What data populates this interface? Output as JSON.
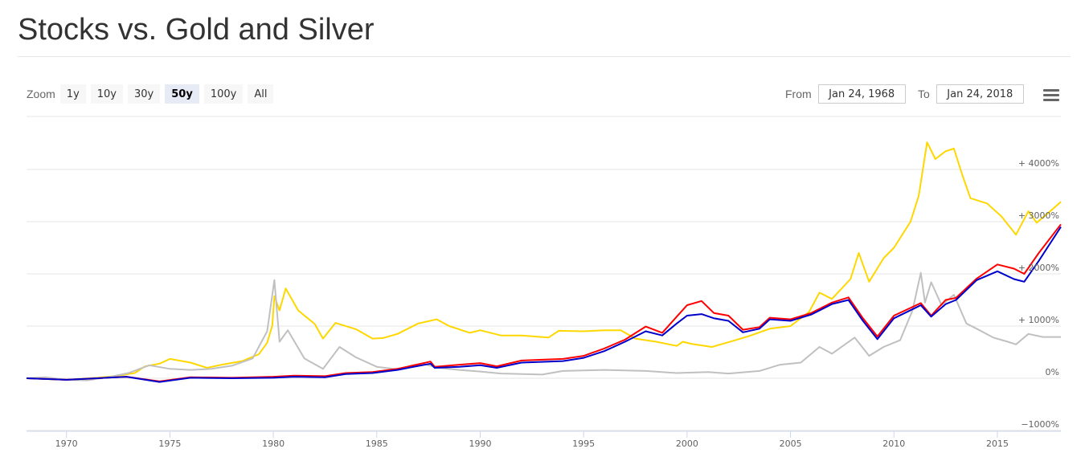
{
  "page": {
    "title": "Stocks vs. Gold and Silver"
  },
  "range_selector": {
    "zoom_label": "Zoom",
    "buttons": [
      "1y",
      "10y",
      "30y",
      "50y",
      "100y",
      "All"
    ],
    "active": "50y",
    "from_label": "From",
    "from_value": "Jan 24, 1968",
    "to_label": "To",
    "to_value": "Jan 24, 2018"
  },
  "menu_icon": "hamburger-menu-icon",
  "chart_data": {
    "type": "line",
    "title": "Stocks vs. Gold and Silver",
    "xlim": [
      1968.07,
      2018.07
    ],
    "ylim": [
      -1000,
      5000
    ],
    "x_ticks": [
      1970,
      1975,
      1980,
      1985,
      1990,
      1995,
      2000,
      2005,
      2010,
      2015
    ],
    "x_tick_labels": [
      "1970",
      "1975",
      "1980",
      "1985",
      "1990",
      "1995",
      "2000",
      "2005",
      "2010",
      "2015"
    ],
    "y_ticks": [
      -1000,
      0,
      1000,
      2000,
      3000,
      4000
    ],
    "y_tick_labels": [
      "−1000%",
      "0%",
      "+ 1000%",
      "+ 2000%",
      "+ 3000%",
      "+ 4000%"
    ],
    "grid": true,
    "legend": false,
    "series": [
      {
        "color": "#ffd700",
        "points": [
          [
            1968.07,
            0
          ],
          [
            1970,
            -30
          ],
          [
            1971.5,
            10
          ],
          [
            1972.5,
            50
          ],
          [
            1973.3,
            100
          ],
          [
            1973.8,
            230
          ],
          [
            1974.5,
            280
          ],
          [
            1975,
            370
          ],
          [
            1976,
            300
          ],
          [
            1976.8,
            200
          ],
          [
            1977.5,
            260
          ],
          [
            1978.5,
            330
          ],
          [
            1979.3,
            460
          ],
          [
            1979.7,
            680
          ],
          [
            1979.95,
            1010
          ],
          [
            1980.05,
            1570
          ],
          [
            1980.3,
            1300
          ],
          [
            1980.6,
            1720
          ],
          [
            1981.2,
            1300
          ],
          [
            1982,
            1040
          ],
          [
            1982.4,
            760
          ],
          [
            1983,
            1060
          ],
          [
            1984,
            940
          ],
          [
            1984.8,
            760
          ],
          [
            1985.3,
            770
          ],
          [
            1986,
            850
          ],
          [
            1987,
            1050
          ],
          [
            1987.9,
            1130
          ],
          [
            1988.5,
            1000
          ],
          [
            1989.5,
            870
          ],
          [
            1990,
            920
          ],
          [
            1991,
            820
          ],
          [
            1992,
            820
          ],
          [
            1993.3,
            780
          ],
          [
            1993.8,
            910
          ],
          [
            1995,
            900
          ],
          [
            1996,
            920
          ],
          [
            1996.8,
            920
          ],
          [
            1997.5,
            760
          ],
          [
            1998.5,
            700
          ],
          [
            1999.5,
            620
          ],
          [
            1999.8,
            700
          ],
          [
            2000.2,
            660
          ],
          [
            2001.2,
            600
          ],
          [
            2002,
            690
          ],
          [
            2003,
            810
          ],
          [
            2004,
            950
          ],
          [
            2005,
            1000
          ],
          [
            2005.9,
            1270
          ],
          [
            2006.4,
            1640
          ],
          [
            2007,
            1520
          ],
          [
            2007.9,
            1900
          ],
          [
            2008.3,
            2400
          ],
          [
            2008.8,
            1850
          ],
          [
            2009.5,
            2300
          ],
          [
            2010,
            2500
          ],
          [
            2010.8,
            3000
          ],
          [
            2011.2,
            3500
          ],
          [
            2011.6,
            4520
          ],
          [
            2012,
            4200
          ],
          [
            2012.5,
            4350
          ],
          [
            2012.9,
            4400
          ],
          [
            2013.3,
            3900
          ],
          [
            2013.7,
            3450
          ],
          [
            2014.5,
            3350
          ],
          [
            2015.2,
            3100
          ],
          [
            2015.9,
            2750
          ],
          [
            2016.5,
            3200
          ],
          [
            2016.9,
            2980
          ],
          [
            2017.5,
            3180
          ],
          [
            2018.07,
            3380
          ]
        ]
      },
      {
        "color": "#c0c0c0",
        "points": [
          [
            1968.07,
            0
          ],
          [
            1969,
            20
          ],
          [
            1970,
            -30
          ],
          [
            1971,
            -40
          ],
          [
            1972,
            20
          ],
          [
            1973,
            100
          ],
          [
            1974,
            250
          ],
          [
            1975,
            180
          ],
          [
            1976,
            160
          ],
          [
            1977,
            180
          ],
          [
            1978,
            240
          ],
          [
            1979,
            380
          ],
          [
            1979.7,
            900
          ],
          [
            1980.05,
            1880
          ],
          [
            1980.3,
            700
          ],
          [
            1980.7,
            920
          ],
          [
            1981.5,
            380
          ],
          [
            1982.4,
            180
          ],
          [
            1983.2,
            600
          ],
          [
            1984,
            400
          ],
          [
            1985,
            220
          ],
          [
            1986,
            170
          ],
          [
            1987.3,
            270
          ],
          [
            1988,
            200
          ],
          [
            1989,
            160
          ],
          [
            1990,
            130
          ],
          [
            1991,
            90
          ],
          [
            1993,
            70
          ],
          [
            1994,
            140
          ],
          [
            1996,
            160
          ],
          [
            1998,
            140
          ],
          [
            1999.5,
            100
          ],
          [
            2001,
            120
          ],
          [
            2002,
            90
          ],
          [
            2003.5,
            140
          ],
          [
            2004.5,
            260
          ],
          [
            2005.5,
            300
          ],
          [
            2006.4,
            600
          ],
          [
            2007,
            470
          ],
          [
            2008.1,
            780
          ],
          [
            2008.8,
            430
          ],
          [
            2009.5,
            600
          ],
          [
            2010.3,
            730
          ],
          [
            2010.9,
            1300
          ],
          [
            2011.3,
            2020
          ],
          [
            2011.5,
            1450
          ],
          [
            2011.8,
            1840
          ],
          [
            2012.3,
            1400
          ],
          [
            2012.9,
            1600
          ],
          [
            2013.5,
            1050
          ],
          [
            2014,
            950
          ],
          [
            2014.8,
            780
          ],
          [
            2015.5,
            700
          ],
          [
            2015.9,
            650
          ],
          [
            2016.5,
            850
          ],
          [
            2017.2,
            790
          ],
          [
            2018.07,
            790
          ]
        ]
      },
      {
        "color": "#ff0000",
        "points": [
          [
            1968.07,
            0
          ],
          [
            1970,
            -30
          ],
          [
            1972.9,
            30
          ],
          [
            1974.5,
            -60
          ],
          [
            1976,
            20
          ],
          [
            1978,
            10
          ],
          [
            1980,
            30
          ],
          [
            1981,
            50
          ],
          [
            1982.5,
            40
          ],
          [
            1983.5,
            100
          ],
          [
            1984.8,
            120
          ],
          [
            1986,
            180
          ],
          [
            1987.6,
            320
          ],
          [
            1987.8,
            220
          ],
          [
            1989,
            260
          ],
          [
            1990,
            290
          ],
          [
            1990.8,
            230
          ],
          [
            1992,
            340
          ],
          [
            1994,
            370
          ],
          [
            1995,
            430
          ],
          [
            1996,
            570
          ],
          [
            1997,
            740
          ],
          [
            1998,
            990
          ],
          [
            1998.8,
            870
          ],
          [
            1999.5,
            1180
          ],
          [
            2000,
            1400
          ],
          [
            2000.7,
            1480
          ],
          [
            2001.3,
            1250
          ],
          [
            2002,
            1200
          ],
          [
            2002.7,
            930
          ],
          [
            2003.5,
            980
          ],
          [
            2004,
            1160
          ],
          [
            2005,
            1130
          ],
          [
            2006,
            1250
          ],
          [
            2007,
            1450
          ],
          [
            2007.8,
            1550
          ],
          [
            2008.5,
            1150
          ],
          [
            2009.2,
            800
          ],
          [
            2010,
            1200
          ],
          [
            2011.3,
            1440
          ],
          [
            2011.8,
            1200
          ],
          [
            2012.5,
            1500
          ],
          [
            2013,
            1540
          ],
          [
            2014,
            1910
          ],
          [
            2015,
            2180
          ],
          [
            2015.8,
            2100
          ],
          [
            2016.3,
            2000
          ],
          [
            2017,
            2400
          ],
          [
            2018.07,
            2950
          ]
        ]
      },
      {
        "color": "#0000cc",
        "points": [
          [
            1968.07,
            0
          ],
          [
            1970,
            -30
          ],
          [
            1972.9,
            30
          ],
          [
            1974.5,
            -70
          ],
          [
            1976,
            10
          ],
          [
            1978,
            0
          ],
          [
            1980,
            10
          ],
          [
            1981,
            30
          ],
          [
            1982.5,
            20
          ],
          [
            1983.5,
            80
          ],
          [
            1984.8,
            100
          ],
          [
            1986,
            160
          ],
          [
            1987.6,
            280
          ],
          [
            1987.8,
            200
          ],
          [
            1989,
            220
          ],
          [
            1990,
            250
          ],
          [
            1990.8,
            200
          ],
          [
            1992,
            300
          ],
          [
            1994,
            330
          ],
          [
            1995,
            390
          ],
          [
            1996,
            520
          ],
          [
            1997,
            700
          ],
          [
            1998,
            900
          ],
          [
            1998.8,
            820
          ],
          [
            1999.5,
            1050
          ],
          [
            2000,
            1200
          ],
          [
            2000.7,
            1230
          ],
          [
            2001.3,
            1150
          ],
          [
            2002,
            1100
          ],
          [
            2002.7,
            880
          ],
          [
            2003.5,
            950
          ],
          [
            2004,
            1130
          ],
          [
            2005,
            1100
          ],
          [
            2006,
            1220
          ],
          [
            2007,
            1420
          ],
          [
            2007.8,
            1500
          ],
          [
            2008.5,
            1100
          ],
          [
            2009.2,
            750
          ],
          [
            2010,
            1150
          ],
          [
            2011.3,
            1400
          ],
          [
            2011.8,
            1180
          ],
          [
            2012.5,
            1420
          ],
          [
            2013,
            1500
          ],
          [
            2014,
            1880
          ],
          [
            2015,
            2050
          ],
          [
            2015.8,
            1900
          ],
          [
            2016.3,
            1850
          ],
          [
            2017,
            2250
          ],
          [
            2018.07,
            2900
          ]
        ]
      }
    ]
  }
}
